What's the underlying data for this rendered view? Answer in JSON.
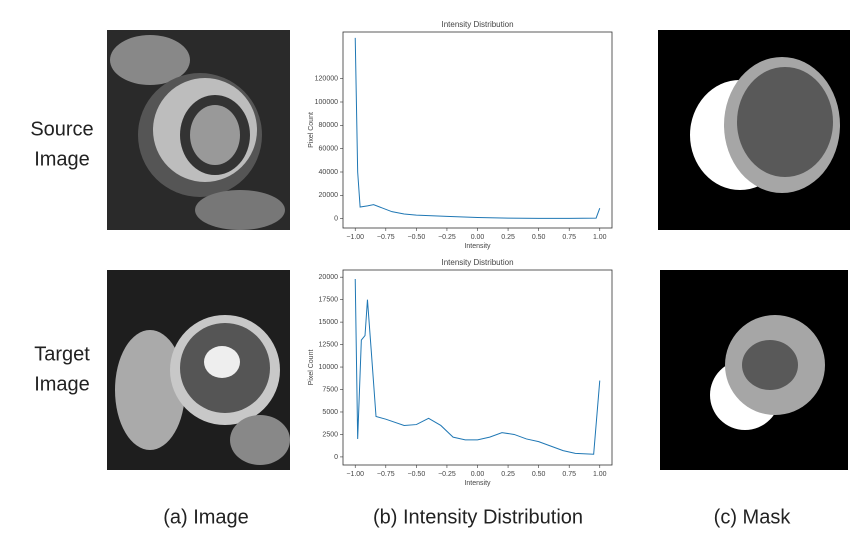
{
  "row_labels": [
    [
      "Source",
      "Image"
    ],
    [
      "Target",
      "Image"
    ]
  ],
  "captions": [
    "(a) Image",
    "(b) Intensity Distribution",
    "(c) Mask"
  ],
  "chart_data": [
    {
      "type": "line",
      "title": "Intensity Distribution",
      "x_label": "Intensity",
      "y_label": "Pixel Count",
      "x": [
        -1.0,
        -0.98,
        -0.96,
        -0.9,
        -0.85,
        -0.8,
        -0.7,
        -0.6,
        -0.5,
        -0.25,
        0.0,
        0.25,
        0.5,
        0.75,
        0.97,
        1.0
      ],
      "series": [
        {
          "color": "#1f77b4",
          "values": [
            155000,
            40000,
            10000,
            11000,
            12000,
            10000,
            6000,
            4000,
            3000,
            2000,
            1000,
            500,
            300,
            200,
            500,
            9000
          ]
        }
      ],
      "xlim": [
        -1.1,
        1.1
      ],
      "ylim": [
        -8000,
        160000
      ],
      "xticks": [
        {
          "value": -1,
          "label": "−1.00"
        },
        {
          "value": -0.75,
          "label": "−0.75"
        },
        {
          "value": -0.5,
          "label": "−0.50"
        },
        {
          "value": -0.25,
          "label": "−0.25"
        },
        {
          "value": 0,
          "label": "0.00"
        },
        0.25,
        {
          "value": 0.5,
          "label": "0.50"
        },
        0.75,
        {
          "value": 1,
          "label": "1.00"
        }
      ],
      "yticks": [
        0,
        20000,
        40000,
        60000,
        80000,
        100000,
        120000
      ]
    },
    {
      "type": "line",
      "title": "Intensity Distribution",
      "x_label": "Intensity",
      "y_label": "Pixel Count",
      "x": [
        -1.0,
        -0.98,
        -0.95,
        -0.92,
        -0.9,
        -0.87,
        -0.83,
        -0.75,
        -0.6,
        -0.5,
        -0.4,
        -0.3,
        -0.2,
        -0.1,
        0.0,
        0.1,
        0.2,
        0.3,
        0.4,
        0.5,
        0.6,
        0.7,
        0.8,
        0.95,
        1.0
      ],
      "series": [
        {
          "color": "#1f77b4",
          "values": [
            19800,
            2000,
            13000,
            13500,
            17500,
            12000,
            4500,
            4200,
            3500,
            3600,
            4300,
            3500,
            2200,
            1900,
            1900,
            2200,
            2700,
            2500,
            2000,
            1700,
            1200,
            700,
            400,
            300,
            8500
          ]
        }
      ],
      "xlim": [
        -1.1,
        1.1
      ],
      "ylim": [
        -900,
        20800
      ],
      "xticks": [
        {
          "value": -1,
          "label": "−1.00"
        },
        {
          "value": -0.75,
          "label": "−0.75"
        },
        {
          "value": -0.5,
          "label": "−0.50"
        },
        {
          "value": -0.25,
          "label": "−0.25"
        },
        {
          "value": 0,
          "label": "0.00"
        },
        0.25,
        {
          "value": 0.5,
          "label": "0.50"
        },
        0.75,
        {
          "value": 1,
          "label": "1.00"
        }
      ],
      "yticks": [
        0,
        2500,
        5000,
        7500,
        10000,
        12500,
        15000,
        17500,
        20000
      ]
    }
  ]
}
